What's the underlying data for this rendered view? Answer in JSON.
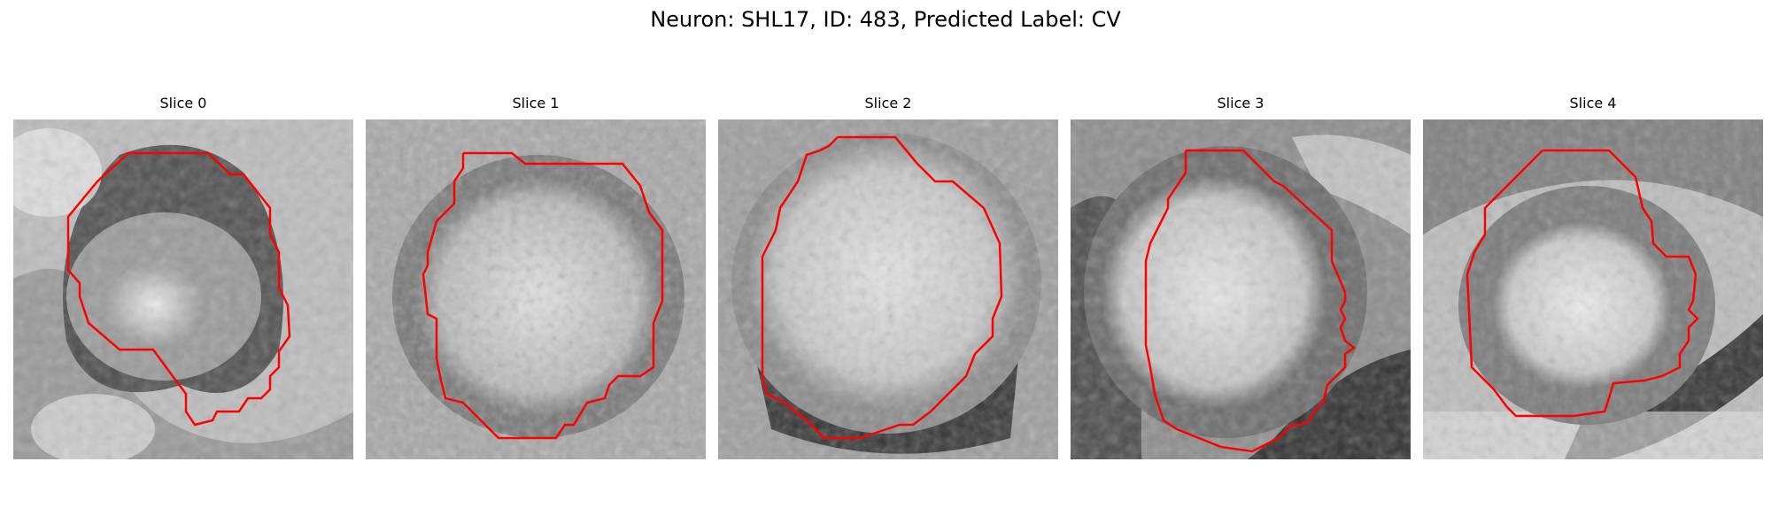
{
  "figure": {
    "title": "Neuron: SHL17, ID: 483, Predicted Label: CV",
    "outline_color": "#ff0000"
  },
  "panels": [
    {
      "label": "Slice 0"
    },
    {
      "label": "Slice 1"
    },
    {
      "label": "Slice 2"
    },
    {
      "label": "Slice 3"
    },
    {
      "label": "Slice 4"
    }
  ]
}
